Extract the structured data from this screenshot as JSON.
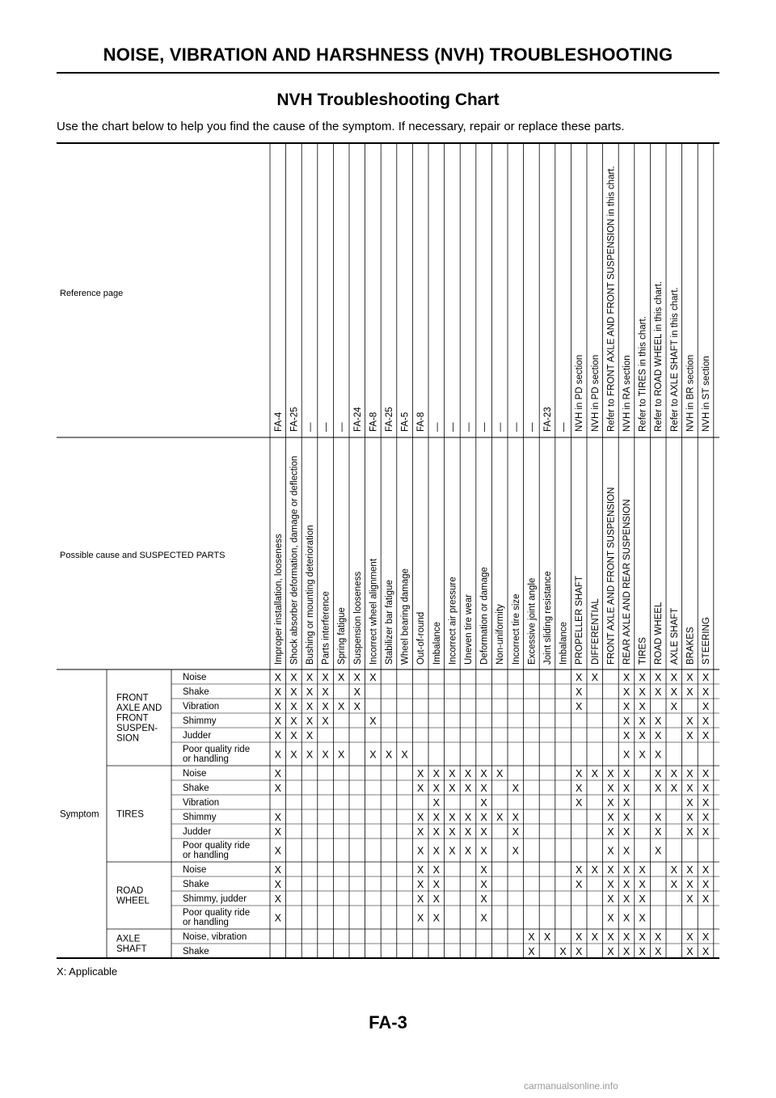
{
  "header": {
    "title": "NOISE, VIBRATION AND HARSHNESS (NVH) TROUBLESHOOTING"
  },
  "section": {
    "title": "NVH Troubleshooting Chart",
    "intro": "Use the chart below to help you find the cause of the symptom. If necessary, repair or replace these parts."
  },
  "chart": {
    "reference_label": "Reference page",
    "cause_label": "Possible cause and SUSPECTED PARTS",
    "symptom_label": "Symptom",
    "columns": [
      {
        "ref": "FA-4",
        "cause": "Improper installation, looseness"
      },
      {
        "ref": "FA-25",
        "cause": "Shock absorber deformation, damage or deflection"
      },
      {
        "ref": "—",
        "cause": "Bushing or mounting deterioration"
      },
      {
        "ref": "—",
        "cause": "Parts interference"
      },
      {
        "ref": "—",
        "cause": "Spring fatigue"
      },
      {
        "ref": "FA-24",
        "cause": "Suspension looseness"
      },
      {
        "ref": "FA-8",
        "cause": "Incorrect wheel alignment"
      },
      {
        "ref": "FA-25",
        "cause": "Stabilizer bar fatigue"
      },
      {
        "ref": "FA-5",
        "cause": "Wheel bearing damage"
      },
      {
        "ref": "FA-8",
        "cause": "Out-of-round"
      },
      {
        "ref": "—",
        "cause": "Imbalance"
      },
      {
        "ref": "—",
        "cause": "Incorrect air pressure"
      },
      {
        "ref": "—",
        "cause": "Uneven tire wear"
      },
      {
        "ref": "—",
        "cause": "Deformation or damage"
      },
      {
        "ref": "—",
        "cause": "Non-uniformity"
      },
      {
        "ref": "—",
        "cause": "Incorrect tire size"
      },
      {
        "ref": "—",
        "cause": "Excessive joint angle"
      },
      {
        "ref": "FA-23",
        "cause": "Joint sliding resistance"
      },
      {
        "ref": "—",
        "cause": "Imbalance"
      },
      {
        "ref": "NVH in PD section",
        "cause": "PROPELLER SHAFT"
      },
      {
        "ref": "NVH in PD section",
        "cause": "DIFFERENTIAL"
      },
      {
        "ref": "Refer to FRONT AXLE AND FRONT SUSPENSION in this chart.",
        "cause": "FRONT AXLE AND FRONT SUSPENSION"
      },
      {
        "ref": "NVH in RA section",
        "cause": "REAR AXLE AND REAR SUSPENSION"
      },
      {
        "ref": "Refer to TIRES in this chart.",
        "cause": "TIRES"
      },
      {
        "ref": "Refer to ROAD WHEEL in this chart.",
        "cause": "ROAD WHEEL"
      },
      {
        "ref": "Refer to AXLE SHAFT in this chart.",
        "cause": "AXLE SHAFT"
      },
      {
        "ref": "NVH in BR section",
        "cause": "BRAKES"
      },
      {
        "ref": "NVH in ST section",
        "cause": "STEERING"
      }
    ],
    "groups": [
      {
        "name": [
          "FRONT",
          "AXLE AND",
          "FRONT",
          "SUSPEN-",
          "SION"
        ],
        "rows": [
          {
            "label": [
              "Noise"
            ],
            "marks": [
              0,
              1,
              2,
              3,
              4,
              5,
              6,
              19,
              20,
              22,
              23,
              24,
              25,
              26,
              27
            ]
          },
          {
            "label": [
              "Shake"
            ],
            "marks": [
              0,
              1,
              2,
              3,
              5,
              19,
              22,
              23,
              24,
              25,
              26,
              27
            ]
          },
          {
            "label": [
              "Vibration"
            ],
            "marks": [
              0,
              1,
              2,
              3,
              4,
              5,
              19,
              22,
              23,
              25,
              27
            ]
          },
          {
            "label": [
              "Shimmy"
            ],
            "marks": [
              0,
              1,
              2,
              3,
              6,
              22,
              23,
              24,
              26,
              27
            ]
          },
          {
            "label": [
              "Judder"
            ],
            "marks": [
              0,
              1,
              2,
              22,
              23,
              24,
              26,
              27
            ]
          },
          {
            "label": [
              "Poor quality ride",
              "or handling"
            ],
            "marks": [
              0,
              1,
              2,
              3,
              4,
              6,
              7,
              8,
              22,
              23,
              24
            ]
          }
        ]
      },
      {
        "name": [
          "TIRES"
        ],
        "rows": [
          {
            "label": [
              "Noise"
            ],
            "marks": [
              0,
              9,
              10,
              11,
              12,
              13,
              14,
              19,
              20,
              21,
              22,
              24,
              25,
              26,
              27
            ]
          },
          {
            "label": [
              "Shake"
            ],
            "marks": [
              0,
              9,
              10,
              11,
              12,
              13,
              15,
              19,
              21,
              22,
              24,
              25,
              26,
              27
            ]
          },
          {
            "label": [
              "Vibration"
            ],
            "marks": [
              10,
              13,
              19,
              21,
              22,
              26,
              27
            ]
          },
          {
            "label": [
              "Shimmy"
            ],
            "marks": [
              0,
              9,
              10,
              11,
              12,
              13,
              14,
              15,
              21,
              22,
              24,
              26,
              27
            ]
          },
          {
            "label": [
              "Judder"
            ],
            "marks": [
              0,
              9,
              10,
              11,
              12,
              13,
              15,
              21,
              22,
              24,
              26,
              27
            ]
          },
          {
            "label": [
              "Poor quality ride",
              "or handling"
            ],
            "marks": [
              0,
              9,
              10,
              11,
              12,
              13,
              15,
              21,
              22,
              24
            ]
          }
        ]
      },
      {
        "name": [
          "ROAD",
          "WHEEL"
        ],
        "rows": [
          {
            "label": [
              "Noise"
            ],
            "marks": [
              0,
              9,
              10,
              13,
              19,
              20,
              21,
              22,
              23,
              25,
              26,
              27
            ]
          },
          {
            "label": [
              "Shake"
            ],
            "marks": [
              0,
              9,
              10,
              13,
              19,
              21,
              22,
              23,
              25,
              26,
              27
            ]
          },
          {
            "label": [
              "Shimmy, judder"
            ],
            "marks": [
              0,
              9,
              10,
              13,
              21,
              22,
              23,
              26,
              27
            ]
          },
          {
            "label": [
              "Poor quality ride",
              "or handling"
            ],
            "marks": [
              0,
              9,
              10,
              13,
              21,
              22,
              23
            ]
          }
        ]
      },
      {
        "name": [
          "AXLE",
          "SHAFT"
        ],
        "rows": [
          {
            "label": [
              "Noise, vibration"
            ],
            "marks": [
              16,
              17,
              19,
              20,
              21,
              22,
              23,
              24,
              26,
              27
            ]
          },
          {
            "label": [
              "Shake"
            ],
            "marks": [
              16,
              18,
              19,
              21,
              22,
              23,
              24,
              26,
              27
            ]
          }
        ]
      }
    ],
    "mark": "X"
  },
  "footnote": "X: Applicable",
  "page_number": "FA-3",
  "watermark": "carmanualsonline.info"
}
